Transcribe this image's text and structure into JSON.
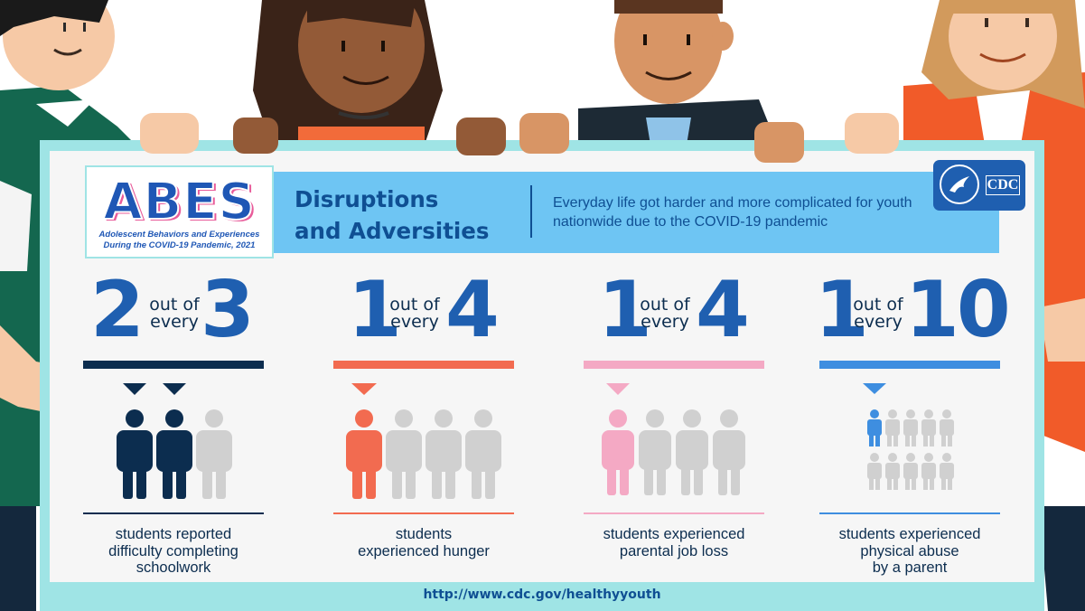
{
  "logo": {
    "wordmark": "ABES",
    "subtitle_line1": "Adolescent Behaviors and Experiences",
    "subtitle_line2": "During the COVID-19 Pandemic, 2021"
  },
  "banner": {
    "title_line1": "Disruptions",
    "title_line2": "and Adversities",
    "description": "Everyday life got harder and more complicated for youth nationwide due to the COVID-19 pandemic"
  },
  "agency": {
    "label": "CDC"
  },
  "stats": [
    {
      "numerator": "2",
      "denominator": "3",
      "connector_line1": "out of",
      "connector_line2": "every",
      "fraction": 0.667,
      "color": "#0c2d4f",
      "caption_lines": [
        "students reported",
        "difficulty completing",
        "schoolwork"
      ]
    },
    {
      "numerator": "1",
      "denominator": "4",
      "connector_line1": "out of",
      "connector_line2": "every",
      "fraction": 0.25,
      "color": "#f26b50",
      "caption_lines": [
        "students",
        "experienced hunger"
      ]
    },
    {
      "numerator": "1",
      "denominator": "4",
      "connector_line1": "out of",
      "connector_line2": "every",
      "fraction": 0.25,
      "color": "#f4a9c4",
      "caption_lines": [
        "students experienced",
        "parental job loss"
      ]
    },
    {
      "numerator": "1",
      "denominator": "10",
      "connector_line1": "out of",
      "connector_line2": "every",
      "fraction": 0.1,
      "color": "#3e8ee0",
      "caption_lines": [
        "students experienced",
        "physical abuse",
        "by a parent"
      ]
    }
  ],
  "footer": {
    "url": "http://www.cdc.gov/healthyyouth"
  },
  "colors": {
    "board": "#9fe4e5",
    "banner": "#6ec5f3",
    "headline": "#1f5fb0",
    "inactive_figure": "#d0d0d0"
  }
}
